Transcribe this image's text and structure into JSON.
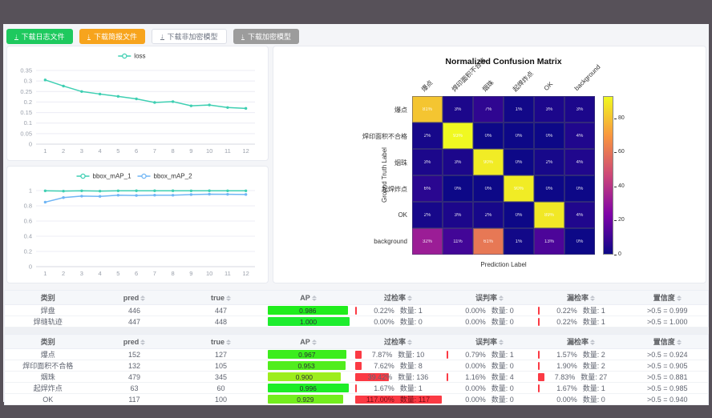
{
  "toolbar": {
    "buttons": [
      {
        "label": "下载日志文件",
        "style": "green",
        "icon": "download-icon"
      },
      {
        "label": "下载简报文件",
        "style": "orange",
        "icon": "download-icon"
      },
      {
        "label": "下载非加密模型",
        "style": "white",
        "icon": "download-icon"
      },
      {
        "label": "下载加密模型",
        "style": "gray",
        "icon": "download-icon"
      }
    ]
  },
  "colors": {
    "teal_series": "#3ecfb2",
    "blue_series": "#6fb5f5",
    "ap_green": "#2ce04d",
    "rate_red": "#fb3a44",
    "button_green": "#1ec95e",
    "button_orange": "#f7a41d",
    "button_gray": "#9c9c9c"
  },
  "chart_data": [
    {
      "type": "line",
      "title": "",
      "x": [
        1,
        2,
        3,
        4,
        5,
        6,
        7,
        8,
        9,
        10,
        11,
        12
      ],
      "series": [
        {
          "name": "loss",
          "color": "#3ecfb2",
          "values": [
            0.305,
            0.276,
            0.25,
            0.238,
            0.227,
            0.215,
            0.198,
            0.202,
            0.182,
            0.186,
            0.174,
            0.17
          ]
        }
      ],
      "ylim": [
        0,
        0.35
      ],
      "yticks": [
        0,
        0.05,
        0.1,
        0.15,
        0.2,
        0.25,
        0.3,
        0.35
      ],
      "grid": true,
      "legend_position": "top"
    },
    {
      "type": "line",
      "title": "",
      "x": [
        1,
        2,
        3,
        4,
        5,
        6,
        7,
        8,
        9,
        10,
        11,
        12
      ],
      "series": [
        {
          "name": "bbox_mAP_1",
          "color": "#3ecfb2",
          "values": [
            0.997,
            0.993,
            0.997,
            0.993,
            0.997,
            0.998,
            0.998,
            0.998,
            0.997,
            0.998,
            0.997,
            0.997
          ]
        },
        {
          "name": "bbox_mAP_2",
          "color": "#6fb5f5",
          "values": [
            0.848,
            0.908,
            0.927,
            0.924,
            0.939,
            0.936,
            0.94,
            0.939,
            0.948,
            0.953,
            0.951,
            0.949
          ]
        }
      ],
      "ylim": [
        0,
        1
      ],
      "yticks": [
        0,
        0.2,
        0.4,
        0.6,
        0.8,
        1
      ],
      "grid": true,
      "legend_position": "top"
    },
    {
      "type": "heatmap",
      "title": "Normalized Confusion Matrix",
      "xlabel": "Prediction Label",
      "ylabel": "Ground Truth Label",
      "labels": [
        "爆点",
        "焊印面积不合格",
        "烟珠",
        "起焊炸点",
        "OK",
        "background"
      ],
      "values": [
        [
          81,
          3,
          7,
          1,
          3,
          3
        ],
        [
          2,
          93,
          0,
          0,
          0,
          4
        ],
        [
          3,
          3,
          90,
          0,
          2,
          4
        ],
        [
          6,
          0,
          0,
          90,
          0,
          0
        ],
        [
          2,
          3,
          2,
          0,
          89,
          4
        ],
        [
          32,
          11,
          61,
          1,
          13,
          0
        ]
      ],
      "value_suffix": "%",
      "vmax": 93,
      "colormap": "plasma",
      "colorbar_ticks": [
        0,
        20,
        40,
        60,
        80
      ],
      "legend_position": "right-colorbar"
    }
  ],
  "tables": {
    "count_label": "数量:",
    "headers": [
      {
        "label": "类别",
        "sortable": false
      },
      {
        "label": "pred",
        "sortable": true
      },
      {
        "label": "true",
        "sortable": true
      },
      {
        "label": "AP",
        "sortable": true
      },
      {
        "label": "过检率",
        "sortable": true
      },
      {
        "label": "误判率",
        "sortable": true
      },
      {
        "label": "漏检率",
        "sortable": true
      },
      {
        "label": "置信度",
        "sortable": true
      }
    ],
    "groups": [
      {
        "rows": [
          {
            "label": "焊盘",
            "pred": "446",
            "true": "447",
            "ap": "0.986",
            "over": {
              "text": "0.22%",
              "count": "1",
              "pct": 0.22
            },
            "mis": {
              "text": "0.00%",
              "count": "0",
              "pct": 0
            },
            "miss": {
              "text": "0.22%",
              "count": "1",
              "pct": 0.22
            },
            "conf": ">0.5 = 0.999"
          },
          {
            "label": "焊缝轨迹",
            "pred": "447",
            "true": "448",
            "ap": "1.000",
            "over": {
              "text": "0.00%",
              "count": "0",
              "pct": 0
            },
            "mis": {
              "text": "0.00%",
              "count": "0",
              "pct": 0
            },
            "miss": {
              "text": "0.22%",
              "count": "1",
              "pct": 0.22
            },
            "conf": ">0.5 = 1.000"
          }
        ]
      },
      {
        "rows": [
          {
            "label": "爆点",
            "pred": "152",
            "true": "127",
            "ap": "0.967",
            "over": {
              "text": "7.87%",
              "count": "10",
              "pct": 7.87
            },
            "mis": {
              "text": "0.79%",
              "count": "1",
              "pct": 0.79
            },
            "miss": {
              "text": "1.57%",
              "count": "2",
              "pct": 1.57
            },
            "conf": ">0.5 = 0.924"
          },
          {
            "label": "焊印面积不合格",
            "pred": "132",
            "true": "105",
            "ap": "0.953",
            "over": {
              "text": "7.62%",
              "count": "8",
              "pct": 7.62
            },
            "mis": {
              "text": "0.00%",
              "count": "0",
              "pct": 0
            },
            "miss": {
              "text": "1.90%",
              "count": "2",
              "pct": 1.9
            },
            "conf": ">0.5 = 0.905"
          },
          {
            "label": "烟珠",
            "pred": "479",
            "true": "345",
            "ap": "0.900",
            "over": {
              "text": "39.42%",
              "count": "136",
              "pct": 39.42
            },
            "mis": {
              "text": "1.16%",
              "count": "4",
              "pct": 1.16
            },
            "miss": {
              "text": "7.83%",
              "count": "27",
              "pct": 7.83
            },
            "conf": ">0.5 = 0.881"
          },
          {
            "label": "起焊炸点",
            "pred": "63",
            "true": "60",
            "ap": "0.996",
            "over": {
              "text": "1.67%",
              "count": "1",
              "pct": 1.67
            },
            "mis": {
              "text": "0.00%",
              "count": "0",
              "pct": 0
            },
            "miss": {
              "text": "1.67%",
              "count": "1",
              "pct": 1.67
            },
            "conf": ">0.5 = 0.985"
          },
          {
            "label": "OK",
            "pred": "117",
            "true": "100",
            "ap": "0.929",
            "over": {
              "text": "117.00%",
              "count": "117",
              "pct": 117
            },
            "mis": {
              "text": "0.00%",
              "count": "0",
              "pct": 0
            },
            "miss": {
              "text": "0.00%",
              "count": "0",
              "pct": 0
            },
            "conf": ">0.5 = 0.940"
          }
        ]
      }
    ]
  }
}
